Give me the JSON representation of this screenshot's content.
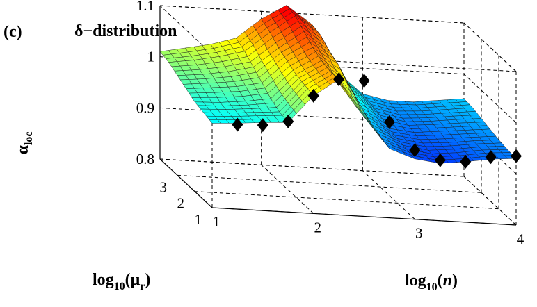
{
  "chart_data": {
    "type": "surface3d",
    "panel_label": "(c)",
    "title": "δ−distribution",
    "zlabel": {
      "main": "α",
      "sub": "loc"
    },
    "xlabel": {
      "prefix": "log",
      "sub": "10",
      "open": "(",
      "var": "n",
      "close": ")"
    },
    "ylabel": {
      "prefix": "log",
      "sub": "10",
      "open": "(μ",
      "var_sub": "r",
      "close": ")"
    },
    "x_ticks": [
      "1",
      "2",
      "3",
      "4"
    ],
    "y_ticks": [
      "1",
      "2",
      "3"
    ],
    "z_ticks": [
      "0.8",
      "0.9",
      "1",
      "1.1"
    ],
    "xlim": [
      1,
      4
    ],
    "ylim": [
      1,
      4
    ],
    "zlim": [
      0.8,
      1.1
    ],
    "grid": true,
    "colormap": "jet",
    "surface_rows_description": "alpha_loc sampled on log10(n) columns (x) for log10(mu_r) rows (y)",
    "surface_x": [
      1.0,
      1.25,
      1.5,
      1.75,
      2.0,
      2.25,
      2.5,
      2.75,
      3.0,
      3.25,
      3.5,
      3.75,
      4.0
    ],
    "surface_y": [
      1.0,
      1.5,
      2.0,
      2.5,
      3.0,
      3.5,
      4.0
    ],
    "surface_z": [
      [
        0.965,
        0.968,
        0.972,
        0.975,
        1.03,
        1.065,
        1.0,
        0.935,
        0.918,
        0.912,
        0.918,
        0.926,
        0.93
      ],
      [
        0.97,
        0.972,
        0.976,
        0.98,
        1.035,
        1.065,
        1.0,
        0.94,
        0.922,
        0.915,
        0.92,
        0.928,
        0.932
      ],
      [
        0.975,
        0.977,
        0.982,
        0.99,
        1.04,
        1.07,
        1.03,
        0.95,
        0.926,
        0.92,
        0.924,
        0.93,
        0.935
      ],
      [
        0.985,
        0.99,
        0.995,
        1.005,
        1.05,
        1.08,
        1.05,
        0.96,
        0.93,
        0.925,
        0.93,
        0.935,
        0.94
      ],
      [
        0.995,
        1.0,
        1.008,
        1.02,
        1.06,
        1.095,
        1.06,
        0.975,
        0.94,
        0.93,
        0.934,
        0.94,
        0.945
      ],
      [
        1.005,
        1.012,
        1.022,
        1.035,
        1.075,
        1.11,
        1.075,
        0.985,
        0.945,
        0.935,
        0.938,
        0.944,
        0.95
      ],
      [
        1.01,
        1.02,
        1.03,
        1.045,
        1.085,
        1.115,
        1.08,
        0.99,
        0.95,
        0.94,
        0.94,
        0.946,
        0.952
      ]
    ],
    "series": [
      {
        "name": "diamond markers",
        "y": 1,
        "x": [
          1.25,
          1.5,
          1.75,
          2.0,
          2.25,
          2.5,
          2.75,
          3.0,
          3.25,
          3.5,
          3.75,
          4.0
        ],
        "z": [
          0.965,
          0.967,
          0.977,
          1.03,
          1.065,
          1.065,
          0.987,
          0.935,
          0.918,
          0.918,
          0.93,
          0.935
        ]
      }
    ]
  }
}
